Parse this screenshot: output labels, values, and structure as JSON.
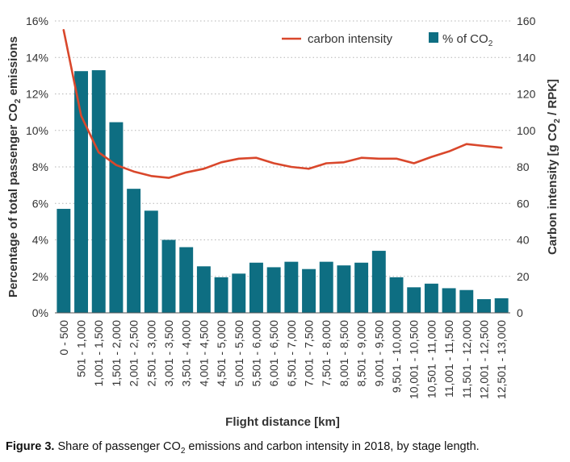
{
  "chart_data": {
    "type": "bar+line",
    "categories": [
      "0 - 500",
      "501 - 1,000",
      "1,001 - 1,500",
      "1,501 - 2,000",
      "2,001 - 2,500",
      "2,501 - 3,000",
      "3,001 - 3,500",
      "3,501 - 4,000",
      "4,001 - 4,500",
      "4,501 - 5,000",
      "5,001 - 5,500",
      "5,501 - 6,000",
      "6,001 - 6,500",
      "6,501 - 7,000",
      "7,001 - 7,500",
      "7,501 - 8,000",
      "8,001 - 8,500",
      "8,501 - 9,000",
      "9,001 - 9,500",
      "9,501 - 10,000",
      "10,001 - 10,500",
      "10,501 - 11,000",
      "11,001 - 11,500",
      "11,501 - 12,000",
      "12,001 - 12,500",
      "12,501 - 13,000"
    ],
    "series": [
      {
        "name": "% of CO",
        "name_subscript": "2",
        "type": "bar",
        "axis": "left",
        "color": "#0e6e82",
        "values": [
          5.7,
          13.25,
          13.3,
          10.45,
          6.8,
          5.6,
          4.0,
          3.6,
          2.55,
          1.95,
          2.15,
          2.75,
          2.5,
          2.8,
          2.4,
          2.8,
          2.6,
          2.75,
          3.4,
          1.95,
          1.4,
          1.6,
          1.35,
          1.25,
          0.75,
          0.8
        ]
      },
      {
        "name": "carbon intensity",
        "type": "line",
        "axis": "right",
        "color": "#d9472b",
        "values": [
          155,
          108,
          88,
          81,
          77.5,
          75,
          74,
          77,
          79,
          82.5,
          84.5,
          85,
          82,
          80,
          79,
          82,
          82.5,
          85,
          84.5,
          84.5,
          82,
          85.5,
          88.5,
          92.5,
          91.5,
          90.5
        ]
      }
    ],
    "xlabel": "Flight distance [km]",
    "ylabel": "Percentage of total passenger CO",
    "ylabel_subscript": "2",
    "ylabel_suffix": " emissions",
    "y2label": "Carbon intensity [g CO",
    "y2label_subscript": "2",
    "y2label_suffix": " / RPK]",
    "ylim": [
      0,
      16
    ],
    "y_ticks": [
      "0%",
      "2%",
      "4%",
      "6%",
      "8%",
      "10%",
      "12%",
      "14%",
      "16%"
    ],
    "y2lim": [
      0,
      160
    ],
    "y2_ticks": [
      "0",
      "20",
      "40",
      "60",
      "80",
      "100",
      "120",
      "140",
      "160"
    ],
    "grid": "horizontal-dotted",
    "legend_position": "top-right"
  },
  "caption": {
    "label": "Figure 3.",
    "text_before": " Share of passenger CO",
    "subscript": "2",
    "text_after": " emissions and carbon intensity in 2018, by stage length."
  }
}
